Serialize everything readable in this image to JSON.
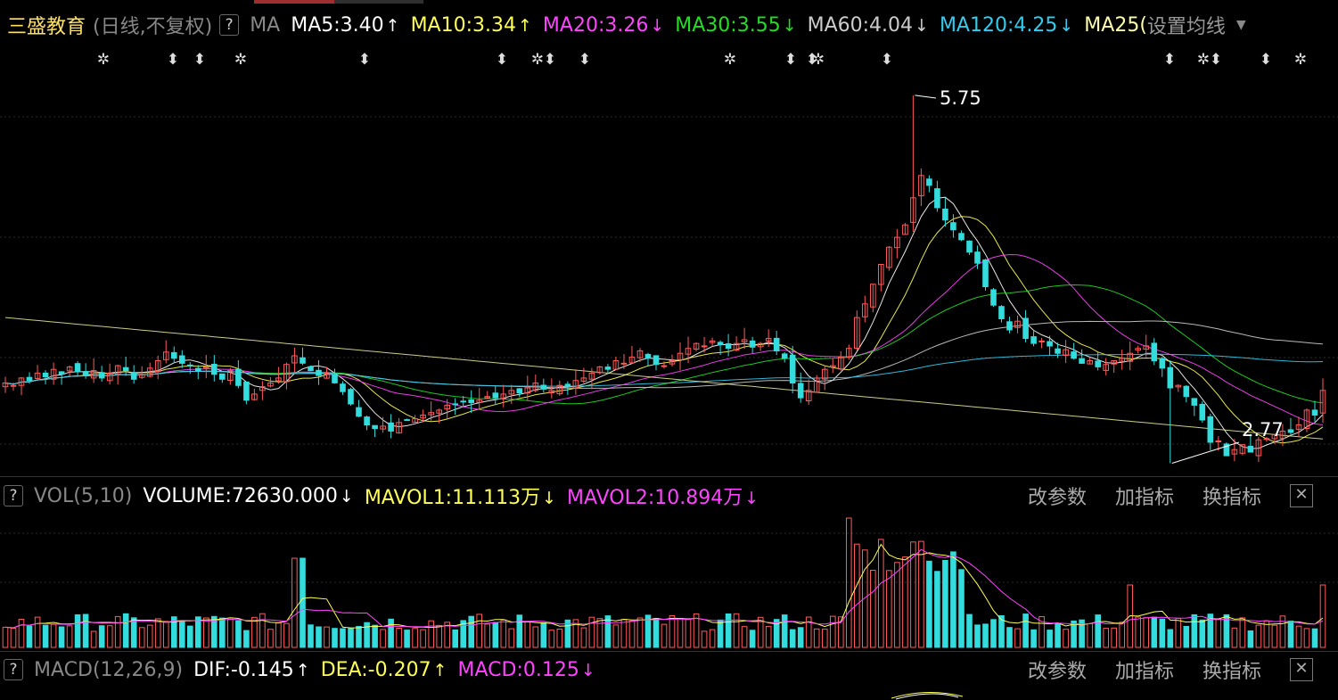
{
  "header": {
    "stock_name": "三盛教育",
    "period": "(日线,不复权)",
    "help": "?",
    "ma_label": "MA",
    "ma5": "MA5:3.40",
    "ma5_arrow": "↑",
    "ma10": "MA10:3.34",
    "ma10_arrow": "↑",
    "ma20": "MA20:3.26",
    "ma20_arrow": "↓",
    "ma30": "MA30:3.55",
    "ma30_arrow": "↓",
    "ma60": "MA60:4.04",
    "ma60_arrow": "↓",
    "ma120": "MA120:4.25",
    "ma120_arrow": "↓",
    "ma250": "MA25(",
    "settings": "设置均线",
    "colors": {
      "ma5": "#ffffff",
      "ma10": "#ffff55",
      "ma20": "#ff44ff",
      "ma30": "#22dd22",
      "ma60": "#cccccc",
      "ma120": "#33ccee",
      "ma250": "#ffffaa"
    }
  },
  "annotations": {
    "high": "5.75",
    "low": "2.77"
  },
  "vol_panel": {
    "help": "?",
    "title": "VOL(5,10)",
    "volume": "VOLUME:72630.000",
    "volume_arrow": "↓",
    "mavol1": "MAVOL1:11.113万",
    "mavol1_arrow": "↓",
    "mavol2": "MAVOL2:10.894万",
    "mavol2_arrow": "↓",
    "btn_params": "改参数",
    "btn_add": "加指标",
    "btn_switch": "换指标",
    "close": "✕"
  },
  "macd_panel": {
    "help": "?",
    "title": "MACD(12,26,9)",
    "dif": "DIF:-0.145",
    "dif_arrow": "↑",
    "dea": "DEA:-0.207",
    "dea_arrow": "↑",
    "macd": "MACD:0.125",
    "macd_arrow": "↓",
    "btn_params": "改参数",
    "btn_add": "加指标",
    "btn_switch": "换指标",
    "close": "✕"
  },
  "chart_data": {
    "type": "candlestick",
    "close": [
      3.42,
      3.4,
      3.46,
      3.44,
      3.5,
      3.47,
      3.53,
      3.49,
      3.55,
      3.51,
      3.48,
      3.52,
      3.46,
      3.5,
      3.56,
      3.52,
      3.45,
      3.49,
      3.54,
      3.6,
      3.67,
      3.62,
      3.58,
      3.56,
      3.52,
      3.55,
      3.49,
      3.45,
      3.52,
      3.4,
      3.28,
      3.33,
      3.39,
      3.42,
      3.46,
      3.57,
      3.64,
      3.58,
      3.52,
      3.48,
      3.5,
      3.42,
      3.35,
      3.25,
      3.15,
      3.08,
      3.05,
      3.07,
      3.03,
      3.1,
      3.12,
      3.13,
      3.16,
      3.18,
      3.2,
      3.24,
      3.25,
      3.27,
      3.26,
      3.28,
      3.31,
      3.3,
      3.33,
      3.36,
      3.34,
      3.38,
      3.42,
      3.37,
      3.36,
      3.4,
      3.39,
      3.44,
      3.46,
      3.5,
      3.55,
      3.53,
      3.6,
      3.58,
      3.63,
      3.68,
      3.62,
      3.57,
      3.56,
      3.6,
      3.66,
      3.7,
      3.74,
      3.72,
      3.76,
      3.73,
      3.7,
      3.74,
      3.77,
      3.71,
      3.74,
      3.78,
      3.68,
      3.62,
      3.42,
      3.3,
      3.36,
      3.46,
      3.53,
      3.56,
      3.63,
      3.7,
      3.95,
      4.06,
      4.22,
      4.38,
      4.52,
      4.6,
      4.7,
      4.92,
      5.1,
      5.02,
      4.84,
      4.74,
      4.66,
      4.58,
      4.48,
      4.39,
      4.2,
      4.05,
      3.94,
      3.85,
      3.92,
      3.78,
      3.74,
      3.76,
      3.72,
      3.66,
      3.69,
      3.62,
      3.58,
      3.6,
      3.55,
      3.57,
      3.6,
      3.62,
      3.66,
      3.7,
      3.72,
      3.6,
      3.54,
      3.38,
      3.4,
      3.31,
      3.24,
      3.12,
      2.94,
      2.95,
      2.83,
      2.88,
      2.92,
      2.86,
      2.96,
      2.97,
      3.0,
      3.03,
      3.02,
      3.08,
      3.2,
      3.16,
      3.36
    ],
    "high": 5.75,
    "low": 2.77
  }
}
